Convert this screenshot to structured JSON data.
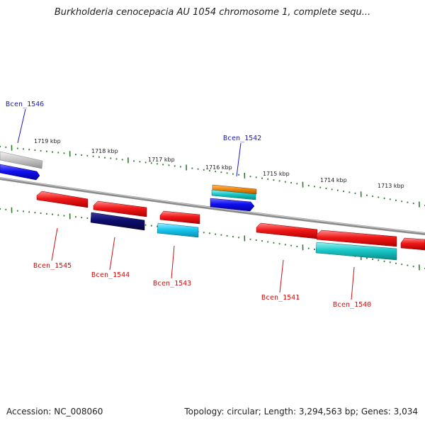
{
  "title": "Burkholderia cenocepacia AU 1054 chromosome 1, complete sequ...",
  "footer": {
    "accession": "Accession: NC_008060",
    "summary": "Topology: circular; Length: 3,294,563 bp; Genes: 3,034"
  },
  "colors": {
    "backbone": "#8a8a8a",
    "tick": "#2e7d2e",
    "label_top": "#1a1acc",
    "label_bottom": "#cc1111",
    "red": "#f01818",
    "navy": "#0d0d6e",
    "cyan": "#19c8f0",
    "teal": "#18c8c8",
    "blue": "#1010f0",
    "orange": "#f08a10",
    "grey": "#c8c8c8"
  },
  "kbp_labels": [
    "1719 kbp",
    "1718 kbp",
    "1717 kbp",
    "1716 kbp",
    "1715 kbp",
    "1714 kbp",
    "1713 kbp"
  ],
  "gene_labels": [
    {
      "name": "Bcen_1546",
      "strand": "top"
    },
    {
      "name": "Bcen_1542",
      "strand": "top"
    },
    {
      "name": "Bcen_1545",
      "strand": "bottom"
    },
    {
      "name": "Bcen_1544",
      "strand": "bottom"
    },
    {
      "name": "Bcen_1543",
      "strand": "bottom"
    },
    {
      "name": "Bcen_1541",
      "strand": "bottom"
    },
    {
      "name": "Bcen_1540",
      "strand": "bottom"
    }
  ]
}
